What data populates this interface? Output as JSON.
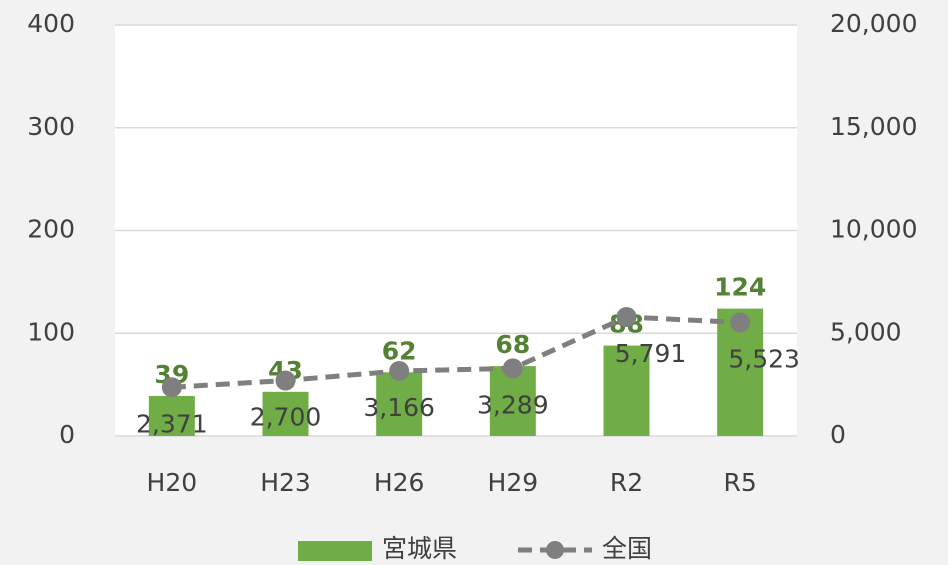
{
  "chart_data": {
    "type": "bar",
    "categories": [
      "H20",
      "H23",
      "H26",
      "H29",
      "R2",
      "R5"
    ],
    "series": [
      {
        "name": "宮城県",
        "type": "bar",
        "color": "#70ad47",
        "values": [
          39,
          43,
          62,
          68,
          88,
          124
        ]
      },
      {
        "name": "全国",
        "type": "line",
        "axis": "y2",
        "color": "#7f7f7f",
        "dashed": true,
        "values": [
          2371,
          2700,
          3166,
          3289,
          5791,
          5523
        ],
        "value_labels": [
          "2,371",
          "2,700",
          "3,166",
          "3,289",
          "5,791",
          "5,523"
        ]
      }
    ],
    "ylim": [
      0,
      400
    ],
    "yticks": [
      0,
      100,
      200,
      300,
      400
    ],
    "y2lim": [
      0,
      20000
    ],
    "y2ticks": [
      0,
      {
        "value": 5000,
        "label": "5,000"
      },
      {
        "value": 10000,
        "label": "10,000"
      },
      {
        "value": 15000,
        "label": "15,000"
      },
      {
        "value": 20000,
        "label": "20,000"
      }
    ],
    "grid": true,
    "legend": "bottom"
  }
}
